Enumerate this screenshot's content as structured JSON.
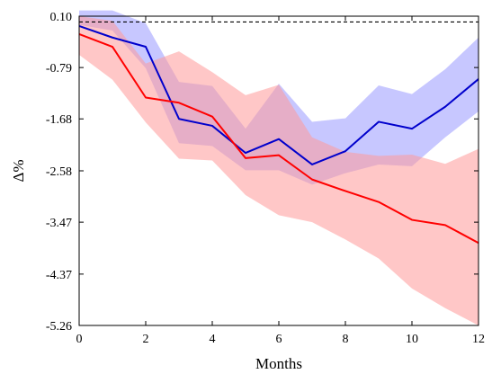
{
  "chart_data": {
    "type": "line",
    "xlabel": "Months",
    "ylabel": "Δ%",
    "xlim": [
      0,
      12
    ],
    "ylim": [
      -5.26,
      0.1
    ],
    "xticks": [
      0,
      2,
      4,
      6,
      8,
      10,
      12
    ],
    "yticks": [
      0.1,
      -0.79,
      -1.68,
      -2.58,
      -3.47,
      -4.37,
      -5.26
    ],
    "ytick_labels": [
      "0.10",
      "-0.79",
      "-1.68",
      "-2.58",
      "-3.47",
      "-4.37",
      "-5.26"
    ],
    "reference_line": {
      "y": 0.0,
      "style": "dashed",
      "color": "#000000"
    },
    "grid": false,
    "x": [
      0,
      1,
      2,
      3,
      4,
      5,
      6,
      7,
      8,
      9,
      10,
      11,
      12
    ],
    "series": [
      {
        "color": "#0000cc",
        "band_color": "#9999ff",
        "values": [
          -0.07,
          -0.27,
          -0.43,
          -1.68,
          -1.8,
          -2.27,
          -2.03,
          -2.47,
          -2.24,
          -1.73,
          -1.85,
          -1.47,
          -0.99
        ],
        "lower": [
          -0.05,
          -0.15,
          -0.8,
          -2.1,
          -2.15,
          -2.57,
          -2.57,
          -2.82,
          -2.62,
          -2.47,
          -2.5,
          -2.0,
          -1.55
        ],
        "upper": [
          0.2,
          0.2,
          -0.02,
          -1.04,
          -1.11,
          -1.85,
          -1.07,
          -1.73,
          -1.67,
          -1.1,
          -1.25,
          -0.82,
          -0.27
        ]
      },
      {
        "color": "#ff0000",
        "band_color": "#ff9999",
        "values": [
          -0.21,
          -0.43,
          -1.31,
          -1.4,
          -1.64,
          -2.36,
          -2.31,
          -2.73,
          -2.93,
          -3.12,
          -3.43,
          -3.52,
          -3.83
        ],
        "lower": [
          -0.57,
          -1.0,
          -1.74,
          -2.37,
          -2.4,
          -3.0,
          -3.35,
          -3.47,
          -3.77,
          -4.1,
          -4.62,
          -4.96,
          -5.26
        ],
        "upper": [
          0.1,
          0.02,
          -0.72,
          -0.51,
          -0.87,
          -1.27,
          -1.09,
          -2.0,
          -2.25,
          -2.32,
          -2.3,
          -2.46,
          -2.2
        ]
      }
    ]
  }
}
